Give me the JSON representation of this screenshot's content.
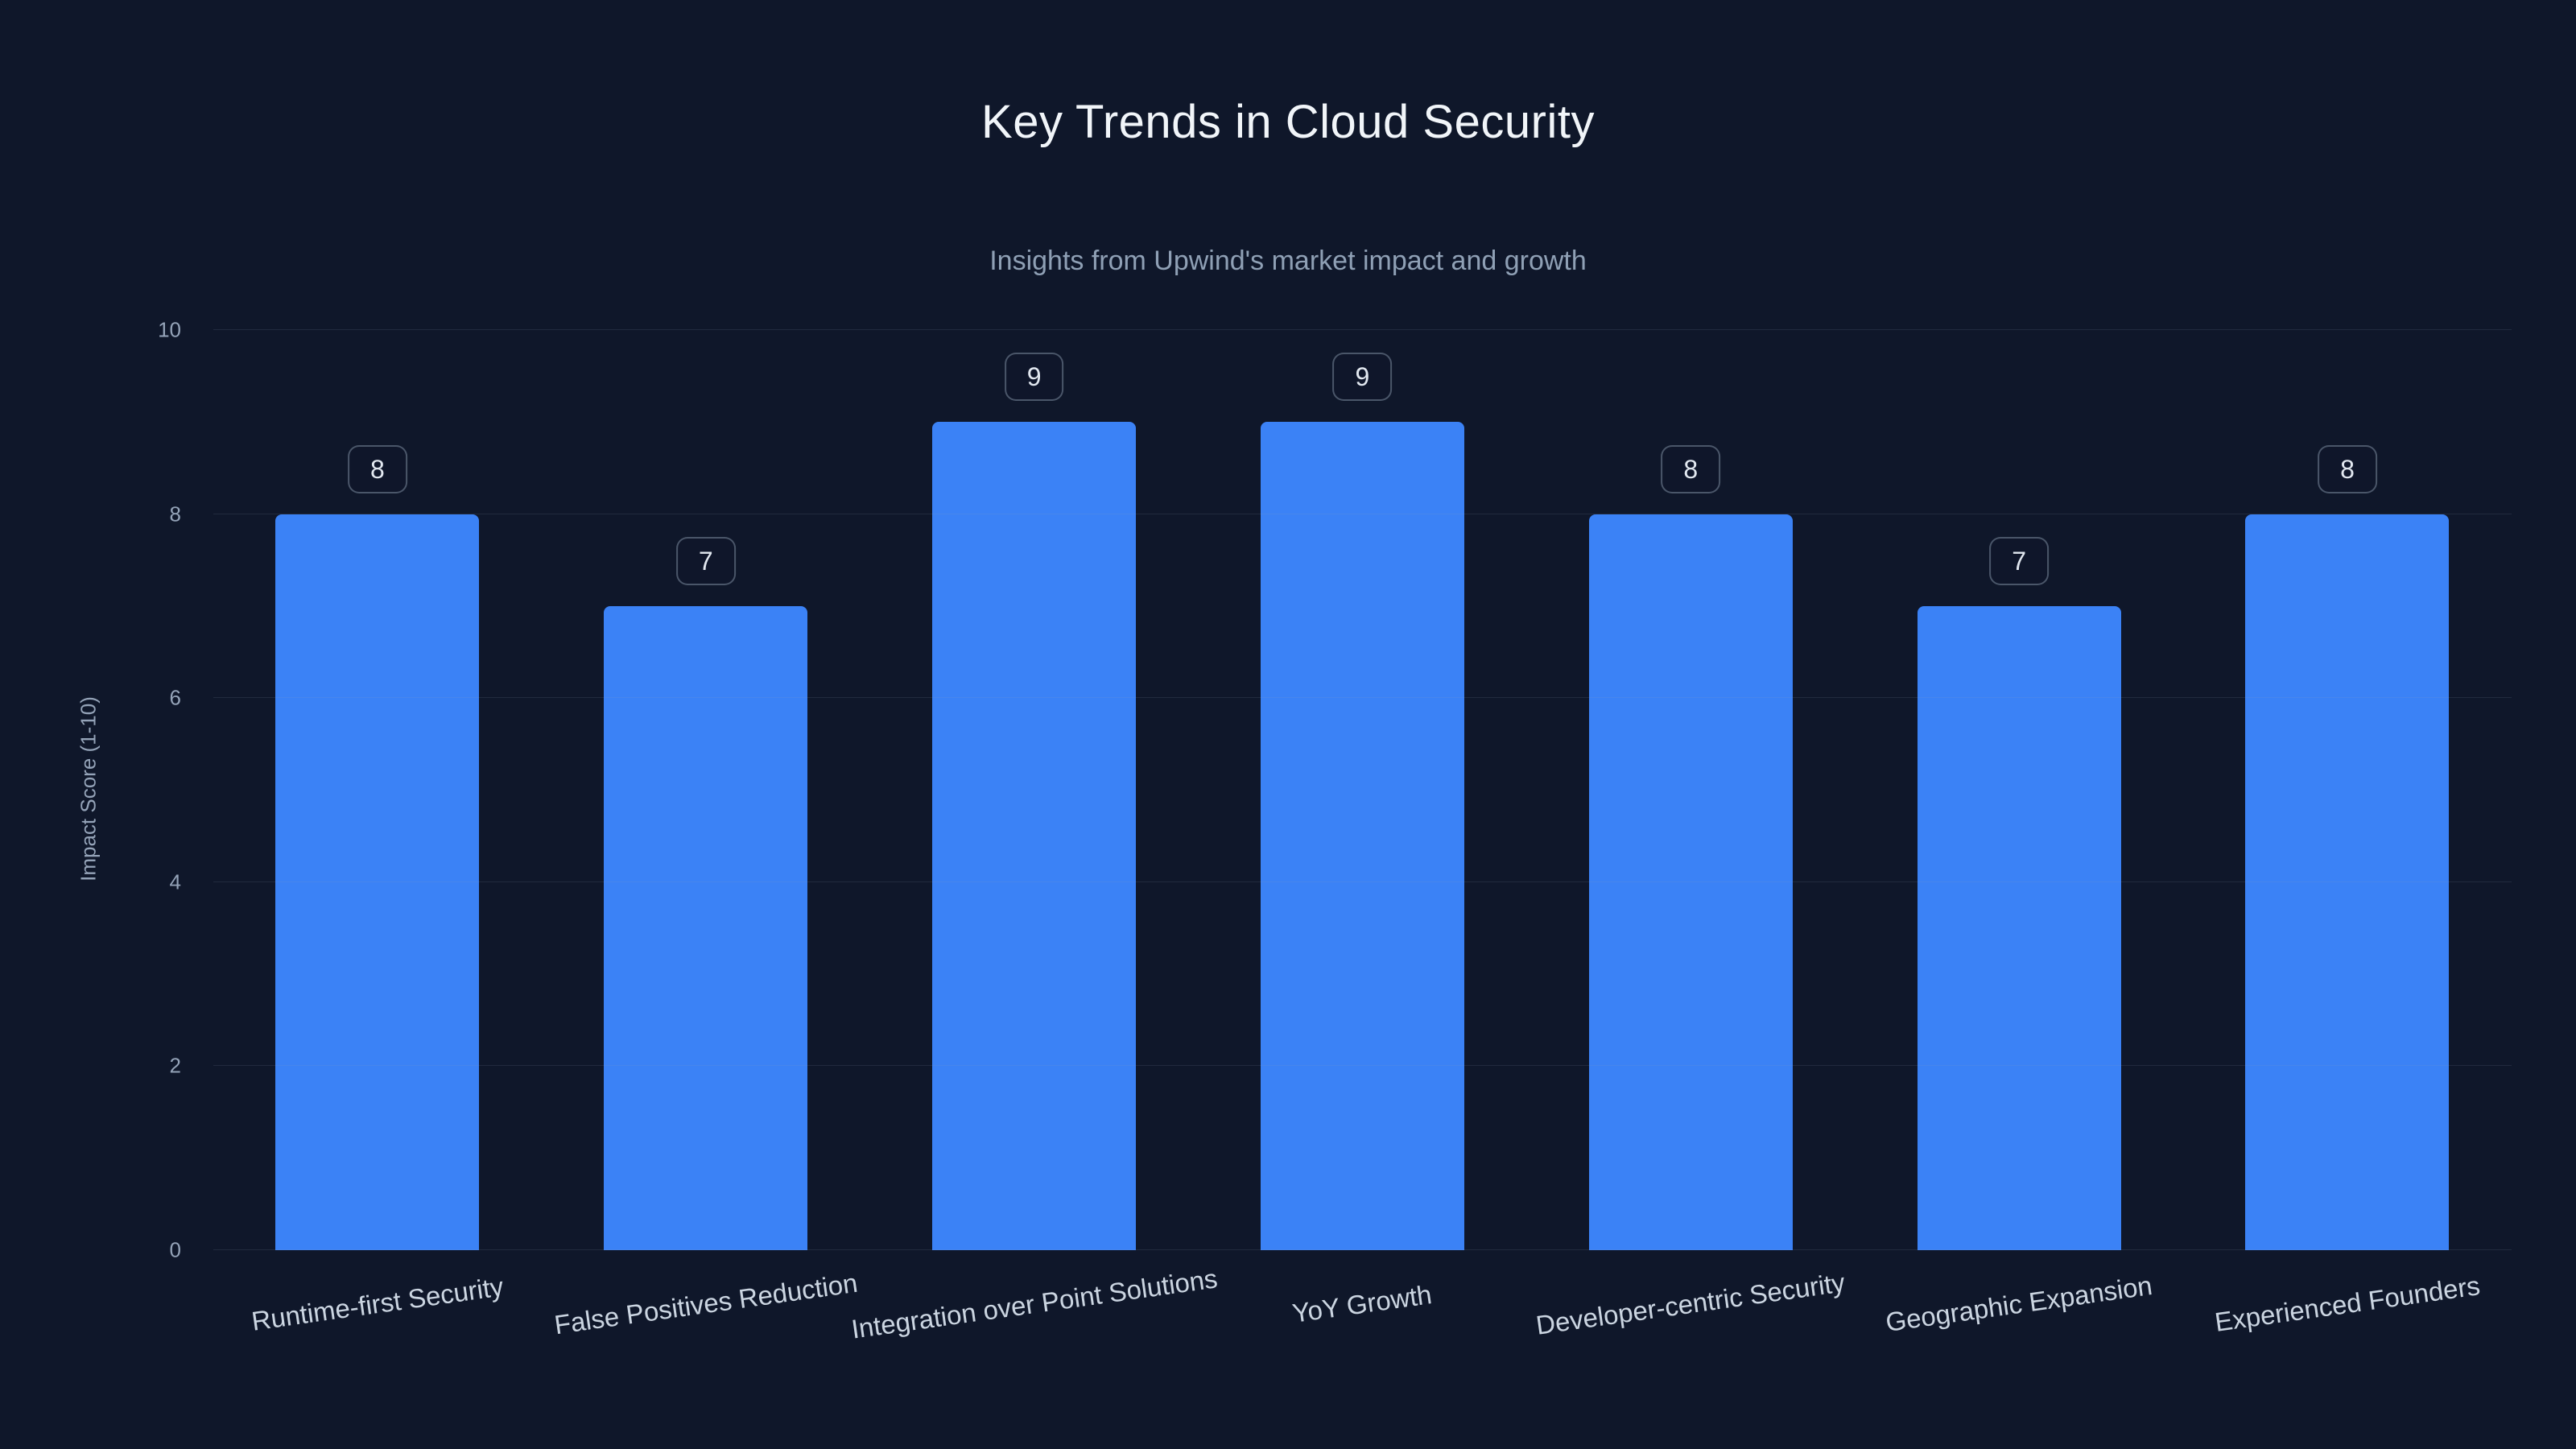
{
  "page": {
    "title": "Key Trends in Cloud Security",
    "subtitle": "Insights from Upwind's market impact and growth"
  },
  "colors": {
    "background": "#0f172a",
    "bar": "#3b82f6",
    "title_text": "#f1f5f9",
    "subtitle_text": "#8fa0b5",
    "axis_text": "#94a3b8",
    "gridline": "rgba(148,163,184,0.14)"
  },
  "chart_data": {
    "type": "bar",
    "title": "Key Trends in Cloud Security",
    "subtitle": "Insights from Upwind's market impact and growth",
    "categories": [
      "Runtime-first Security",
      "False Positives Reduction",
      "Integration over Point Solutions",
      "YoY Growth",
      "Developer-centric Security",
      "Geographic Expansion",
      "Experienced Founders"
    ],
    "values": [
      8,
      7,
      9,
      9,
      8,
      7,
      8
    ],
    "data_labels": [
      "8",
      "7",
      "9",
      "9",
      "8",
      "7",
      "8"
    ],
    "xlabel": "",
    "ylabel": "Impact Score (1-10)",
    "ylim": [
      0,
      10
    ],
    "yticks": [
      0,
      2,
      4,
      6,
      8,
      10
    ],
    "grid": true,
    "legend": false
  }
}
